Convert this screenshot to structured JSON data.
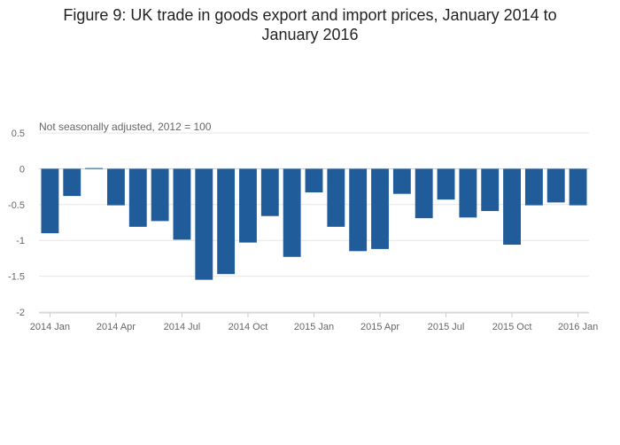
{
  "title": "Figure 9: UK trade in goods export and import prices, January 2014 to January 2016",
  "chart_data": {
    "type": "bar",
    "title": "Figure 9: UK trade in goods export and import prices, January 2014 to January 2016",
    "subtitle": "Not seasonally adjusted, 2012 = 100",
    "xlabel": "",
    "ylabel": "",
    "ylim": [
      -2,
      0.5
    ],
    "yticks": [
      "0.5",
      "0",
      "-0.5",
      "-1",
      "-1.5",
      "-2"
    ],
    "x_tick_labels": [
      "2014 Jan",
      "2014 Apr",
      "2014 Jul",
      "2014 Oct",
      "2015 Jan",
      "2015 Apr",
      "2015 Jul",
      "2015 Oct",
      "2016 Jan"
    ],
    "grid": true,
    "bar_color": "#1f5c99",
    "categories": [
      "2014 Jan",
      "2014 Feb",
      "2014 Mar",
      "2014 Apr",
      "2014 May",
      "2014 Jun",
      "2014 Jul",
      "2014 Aug",
      "2014 Sep",
      "2014 Oct",
      "2014 Nov",
      "2014 Dec",
      "2015 Jan",
      "2015 Feb",
      "2015 Mar",
      "2015 Apr",
      "2015 May",
      "2015 Jun",
      "2015 Jul",
      "2015 Aug",
      "2015 Sep",
      "2015 Oct",
      "2015 Nov",
      "2015 Dec",
      "2016 Jan"
    ],
    "values": [
      -0.9,
      -0.38,
      0.01,
      -0.51,
      -0.81,
      -0.73,
      -0.99,
      -1.55,
      -1.47,
      -1.03,
      -0.66,
      -1.23,
      -0.33,
      -0.81,
      -1.15,
      -1.12,
      -0.35,
      -0.69,
      -0.43,
      -0.68,
      -0.59,
      -1.06,
      -0.51,
      -0.47,
      -0.51
    ]
  }
}
